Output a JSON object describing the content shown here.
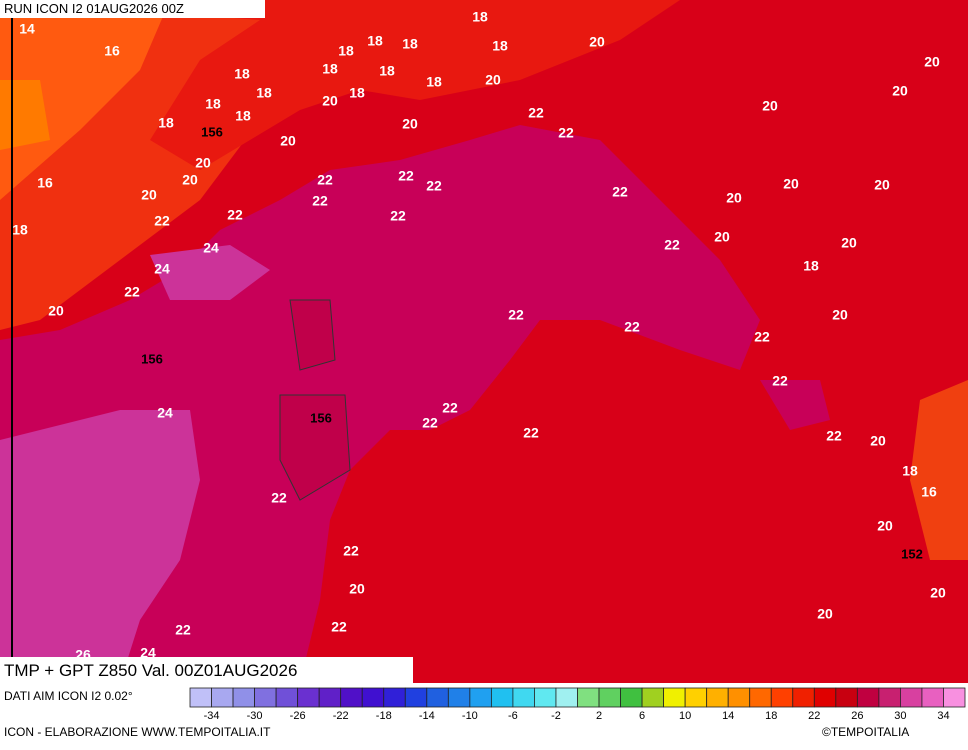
{
  "header": {
    "run": "RUN ICON I2 01AUG2026 00Z"
  },
  "footer": {
    "field": "TMP + GPT Z850 Val. 00Z01AUG2026",
    "source": "DATI AIM ICON I2 0.02°",
    "credit": "ICON - ELABORAZIONE WWW.TEMPOITALIA.IT",
    "copyright": "©TEMPOITALIA"
  },
  "map": {
    "temperature_labels": [
      14,
      16,
      18,
      18,
      18,
      18,
      18,
      20,
      20,
      18,
      18,
      18,
      18,
      20,
      20,
      18,
      18,
      18,
      20,
      20,
      18,
      18,
      20,
      22,
      20,
      22,
      20,
      16,
      20,
      22,
      22,
      22,
      20,
      22,
      22,
      20,
      20,
      20,
      22,
      22,
      22,
      18,
      24,
      22,
      20,
      20,
      24,
      22,
      18,
      20,
      22,
      22,
      20,
      22,
      22,
      22,
      24,
      22,
      22,
      22,
      20,
      18,
      16,
      22,
      20,
      22,
      20,
      20,
      20,
      22,
      22,
      26,
      24
    ],
    "geopotential_labels": [
      156,
      156,
      156,
      152
    ]
  },
  "colorbar": {
    "lim": [
      -36,
      36
    ],
    "colors": [
      "#c0c0f8",
      "#a8a8f0",
      "#9090e8",
      "#8070e0",
      "#7050d8",
      "#6a30d0",
      "#6020c8",
      "#5010c8",
      "#4010d0",
      "#3020d8",
      "#2040e0",
      "#2060e0",
      "#2080e8",
      "#20a0f0",
      "#20c0f0",
      "#40d8f0",
      "#60e8f0",
      "#a0f0f0",
      "#80e080",
      "#60d060",
      "#40c040",
      "#a0d020",
      "#f0f000",
      "#ffd000",
      "#ffb000",
      "#ff9000",
      "#ff6800",
      "#ff4000",
      "#f02000",
      "#e00000",
      "#c80010",
      "#c00040",
      "#c82070",
      "#d840a0",
      "#e860c0",
      "#f890e0"
    ],
    "ticks": [
      -34,
      -30,
      -26,
      -22,
      -18,
      -14,
      -10,
      -6,
      -2,
      2,
      6,
      10,
      14,
      18,
      22,
      26,
      30,
      34
    ]
  }
}
